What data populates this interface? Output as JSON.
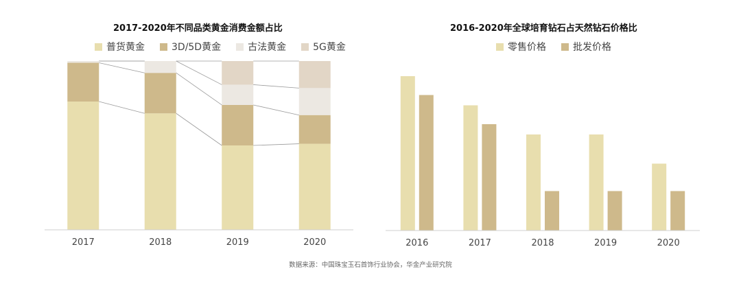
{
  "chart_data": [
    {
      "type": "stacked_bar_percent",
      "title": "2017-2020年不同品类黄金消费金额占比",
      "categories": [
        "2017",
        "2018",
        "2019",
        "2020"
      ],
      "ylim": [
        0,
        100
      ],
      "series": [
        {
          "name": "普货黄金",
          "color": "#E8DEAE",
          "values": [
            76,
            69,
            50,
            51
          ]
        },
        {
          "name": "3D/5D黄金",
          "color": "#CEB98B",
          "values": [
            23,
            24,
            24,
            17
          ]
        },
        {
          "name": "古法黄金",
          "color": "#ECE8E2",
          "values": [
            1,
            7,
            12,
            16
          ]
        },
        {
          "name": "5G黄金",
          "color": "#E2D6C6",
          "values": [
            0,
            0,
            14,
            16
          ]
        }
      ],
      "connector_lines": true,
      "grid": false
    },
    {
      "type": "bar",
      "title": "2016-2020年全球培育钻石占天然钻石价格比",
      "categories": [
        "2016",
        "2017",
        "2018",
        "2019",
        "2020"
      ],
      "ylim": [
        0,
        100
      ],
      "series": [
        {
          "name": "零售价格",
          "color": "#E8DEAE",
          "values": [
            90,
            73,
            56,
            56,
            39
          ]
        },
        {
          "name": "批发价格",
          "color": "#CEB98B",
          "values": [
            79,
            62,
            23,
            23,
            23
          ]
        }
      ],
      "grid": false
    }
  ],
  "source_note": "数据来源：中国珠宝玉石首饰行业协会，华金产业研究院"
}
